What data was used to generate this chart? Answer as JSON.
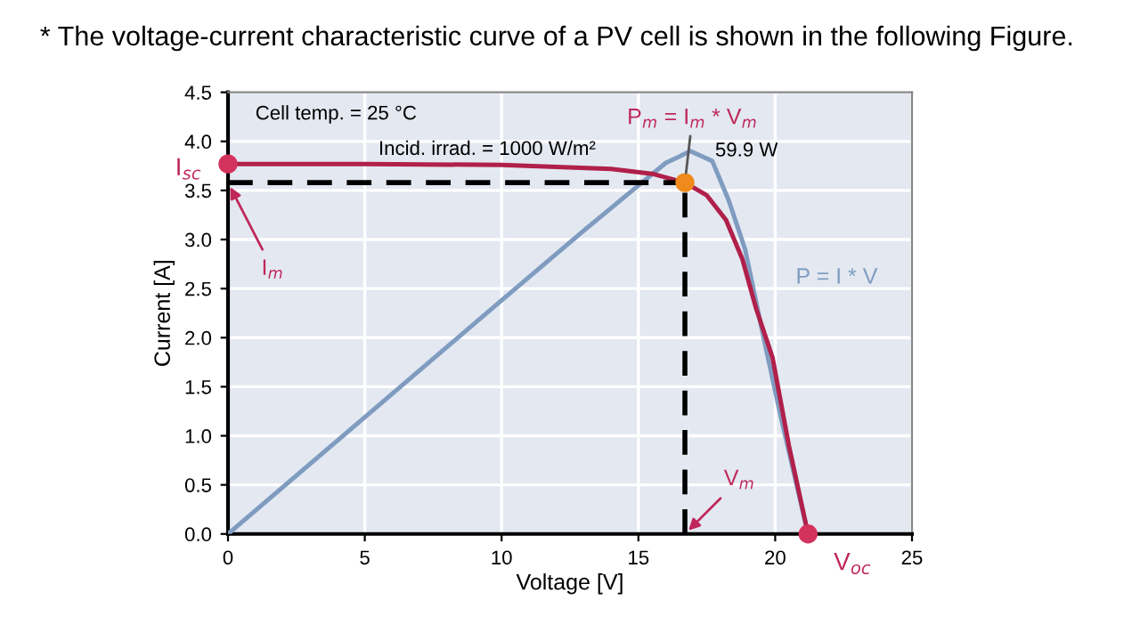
{
  "chart_data": {
    "type": "line",
    "title": "* The voltage-current characteristic curve of a PV cell is shown in the following Figure.",
    "xlabel": "Voltage [V]",
    "ylabel": "Current [A]",
    "xlim": [
      0,
      25
    ],
    "xticks": [
      0,
      5,
      10,
      15,
      20,
      25
    ],
    "ylim": [
      0,
      4.5
    ],
    "yticks": [
      {
        "value": 0,
        "label": "0.0"
      },
      0.5,
      {
        "value": 1,
        "label": "1.0"
      },
      1.5,
      {
        "value": 2,
        "label": "2.0"
      },
      2.5,
      {
        "value": 3,
        "label": "3.0"
      },
      3.5,
      {
        "value": 4,
        "label": "4.0"
      },
      4.5
    ],
    "grid": true,
    "series": [
      {
        "color": "#7f9cc0",
        "x": [
          0,
          5,
          10,
          13,
          15,
          16,
          16.9,
          17.7,
          18.3,
          18.9,
          19.5,
          20.2,
          21.2
        ],
        "values": [
          0,
          1.19,
          2.38,
          3.09,
          3.55,
          3.78,
          3.9,
          3.8,
          3.4,
          2.9,
          2.1,
          1.2,
          0
        ]
      },
      {
        "color": "#b0204a",
        "x": [
          0,
          5,
          10,
          14,
          15.5,
          16.7,
          17.5,
          18.2,
          18.8,
          19.3,
          19.9,
          20.5,
          21.2
        ],
        "values": [
          3.77,
          3.77,
          3.76,
          3.72,
          3.67,
          3.58,
          3.45,
          3.2,
          2.8,
          2.3,
          1.8,
          0.9,
          0
        ]
      },
      {
        "color": "#000000",
        "line_style": "dashed",
        "x": [
          0,
          16.7
        ],
        "values": [
          3.58,
          3.58
        ]
      },
      {
        "color": "#000000",
        "line_style": "dashed",
        "x": [
          16.7,
          16.7
        ],
        "values": [
          0,
          3.58
        ]
      },
      {
        "type": "scatter",
        "color": "#d4335e",
        "x": [
          0,
          21.2
        ],
        "values": [
          3.77,
          0
        ]
      },
      {
        "type": "scatter",
        "color": "#f08a1c",
        "x": [
          16.7
        ],
        "values": [
          3.58
        ]
      }
    ],
    "annotations": [
      "Cell temp. = 25 °C",
      "Incid. irrad. = 1000 W/m²",
      {
        "text": "I$_{sc}$",
        "x": 0,
        "y": 3.77
      },
      {
        "text": "I$_{m}$",
        "x": 0,
        "y": 3.58
      },
      {
        "text": "P$_{m}$ = I$_{m}$ * V$_{m}$",
        "x": 16.7,
        "y": 3.58
      },
      {
        "text": "59.9 W",
        "x": 16.9,
        "y": 3.9
      },
      "P = I * V",
      {
        "text": "V$_{m}$",
        "x": 16.7,
        "y": 0
      },
      {
        "text": "V$_{oc}$",
        "x": 21.2,
        "y": 0
      }
    ]
  }
}
